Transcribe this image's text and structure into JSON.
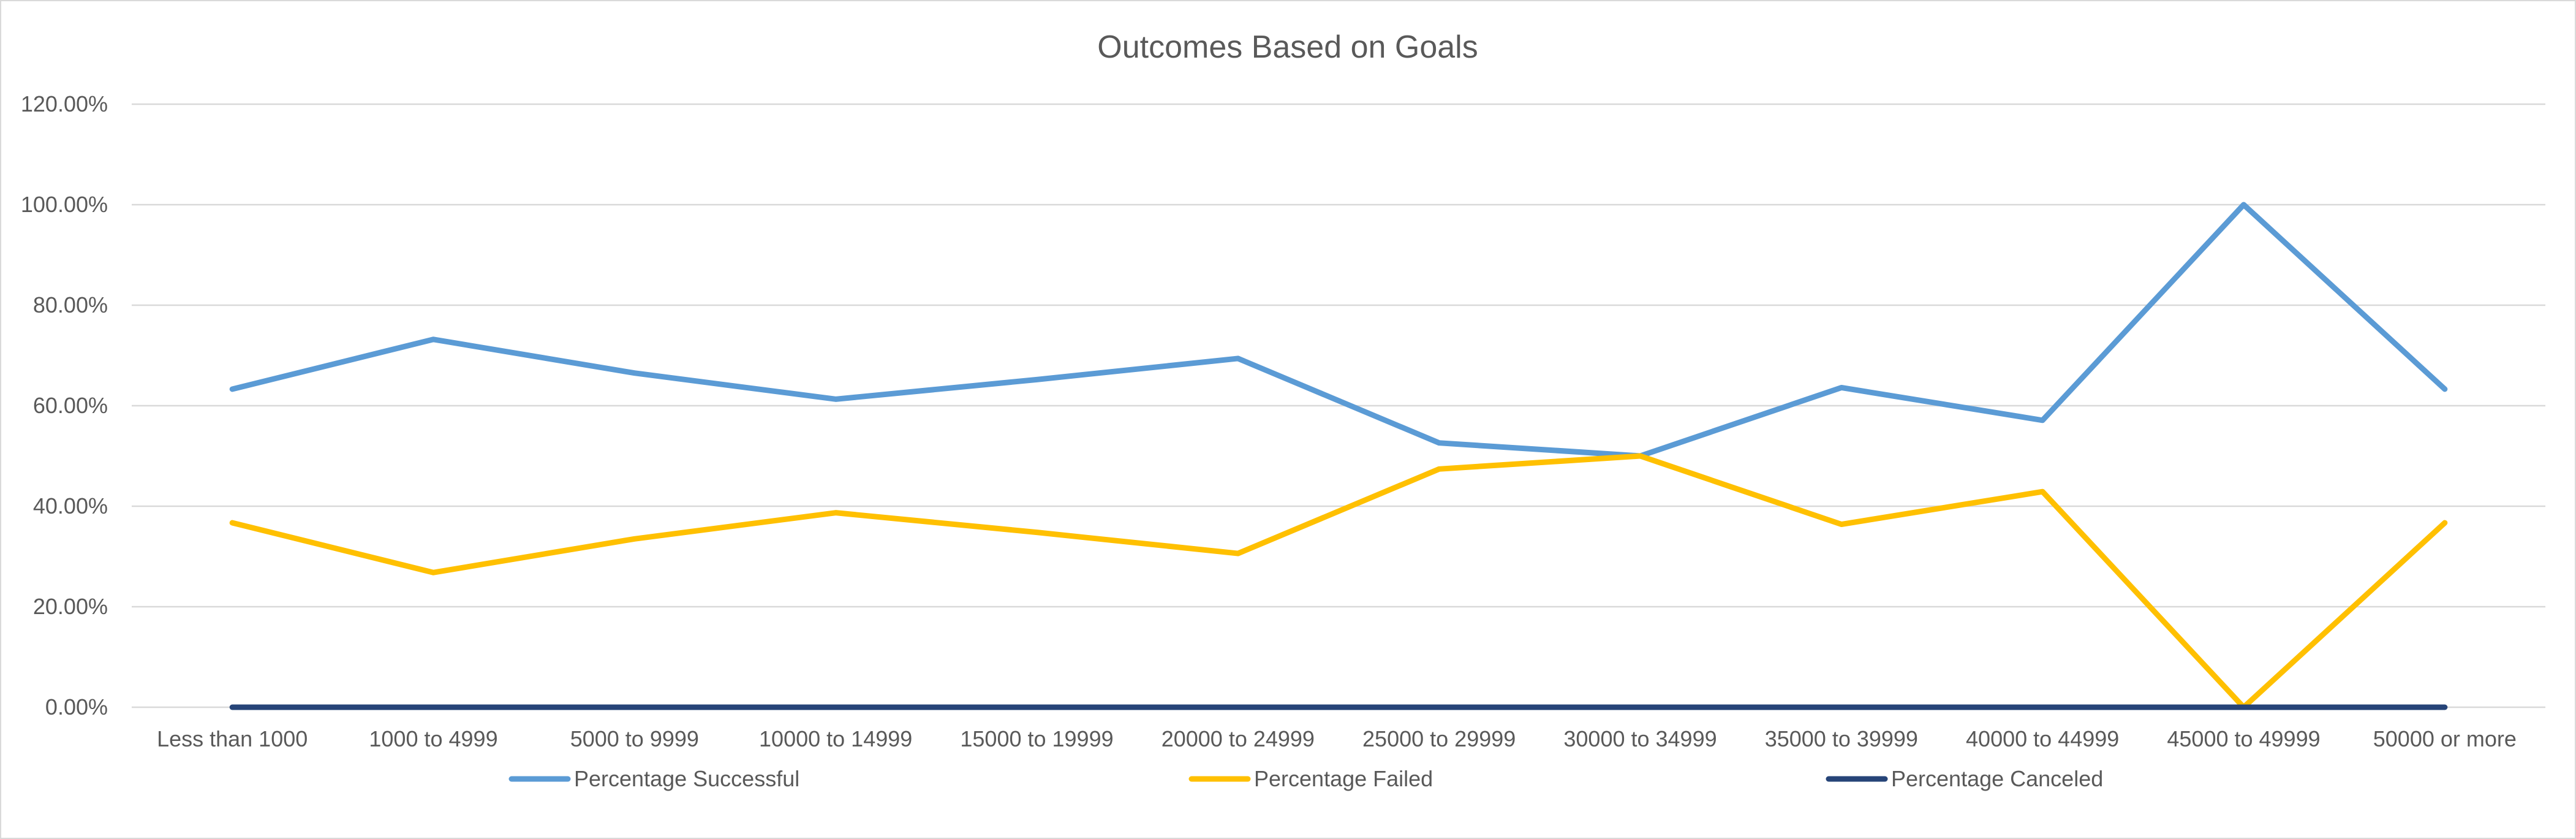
{
  "chart_data": {
    "type": "line",
    "title": "Outcomes Based on Goals",
    "xlabel": "",
    "ylabel": "",
    "ylim": [
      0,
      1.2
    ],
    "y_ticks": [
      0,
      0.2,
      0.4,
      0.6,
      0.8,
      1.0,
      1.2
    ],
    "y_tick_labels": [
      "0.00%",
      "20.00%",
      "40.00%",
      "60.00%",
      "80.00%",
      "100.00%",
      "120.00%"
    ],
    "grid": true,
    "legend_position": "bottom",
    "categories": [
      "Less than 1000",
      "1000 to 4999",
      "5000 to 9999",
      "10000 to 14999",
      "15000 to 19999",
      "20000 to 24999",
      "25000 to 29999",
      "30000 to 34999",
      "35000 to 39999",
      "40000 to 44999",
      "45000 to 49999",
      "50000 or more"
    ],
    "series": [
      {
        "name": "Percentage Successful",
        "color": "#5b9bd5",
        "values": [
          0.633,
          0.732,
          0.665,
          0.613,
          0.652,
          0.694,
          0.526,
          0.5,
          0.636,
          0.571,
          1.0,
          0.633
        ]
      },
      {
        "name": "Percentage Failed",
        "color": "#ffc000",
        "values": [
          0.367,
          0.268,
          0.335,
          0.387,
          0.348,
          0.306,
          0.474,
          0.5,
          0.364,
          0.429,
          0.0,
          0.367
        ]
      },
      {
        "name": "Percentage Canceled",
        "color": "#264478",
        "values": [
          0,
          0,
          0,
          0,
          0,
          0,
          0,
          0,
          0,
          0,
          0,
          0
        ]
      }
    ]
  }
}
